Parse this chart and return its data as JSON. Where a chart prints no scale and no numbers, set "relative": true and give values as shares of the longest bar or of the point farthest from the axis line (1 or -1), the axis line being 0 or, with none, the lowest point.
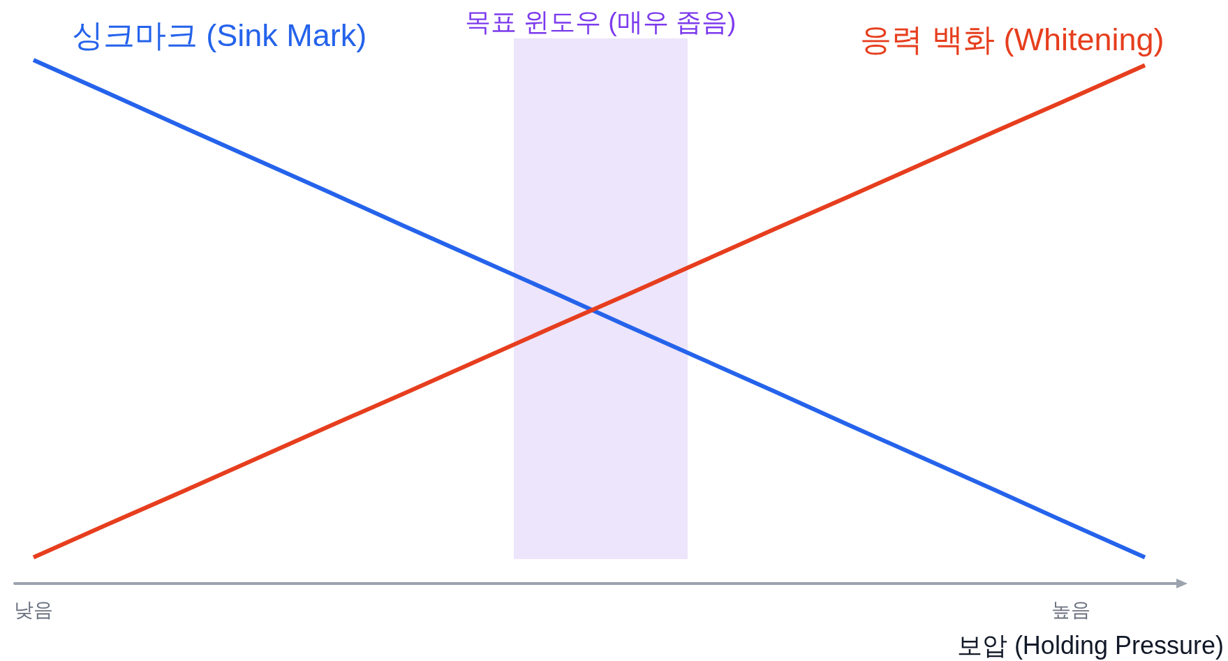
{
  "chart_data": {
    "type": "line",
    "relative": true,
    "xlabel": "보압 (Holding Pressure)",
    "categories": [
      "낮음",
      null,
      null,
      null,
      null,
      null,
      null,
      null,
      null,
      null,
      null,
      null,
      null,
      null,
      "높음",
      null
    ],
    "series": [
      {
        "name": "싱크마크 (Sink Mark)",
        "color": "#2563eb",
        "values": [
          1,
          0.937,
          0.873,
          0.81,
          0.747,
          0.683,
          0.62,
          0.557,
          0.493,
          0.43,
          0.367,
          0.303,
          0.24,
          0.177,
          0.113,
          0.05
        ]
      },
      {
        "name": "응력 백화 (Whitening)",
        "color": "#e63e1e",
        "values": [
          0.05,
          0.113,
          0.175,
          0.238,
          0.301,
          0.363,
          0.426,
          0.489,
          0.551,
          0.614,
          0.677,
          0.739,
          0.802,
          0.865,
          0.927,
          0.99
        ]
      }
    ],
    "annotations": [
      "목표 윈도우 (매우 좁음)"
    ],
    "tick_labels": "x"
  }
}
